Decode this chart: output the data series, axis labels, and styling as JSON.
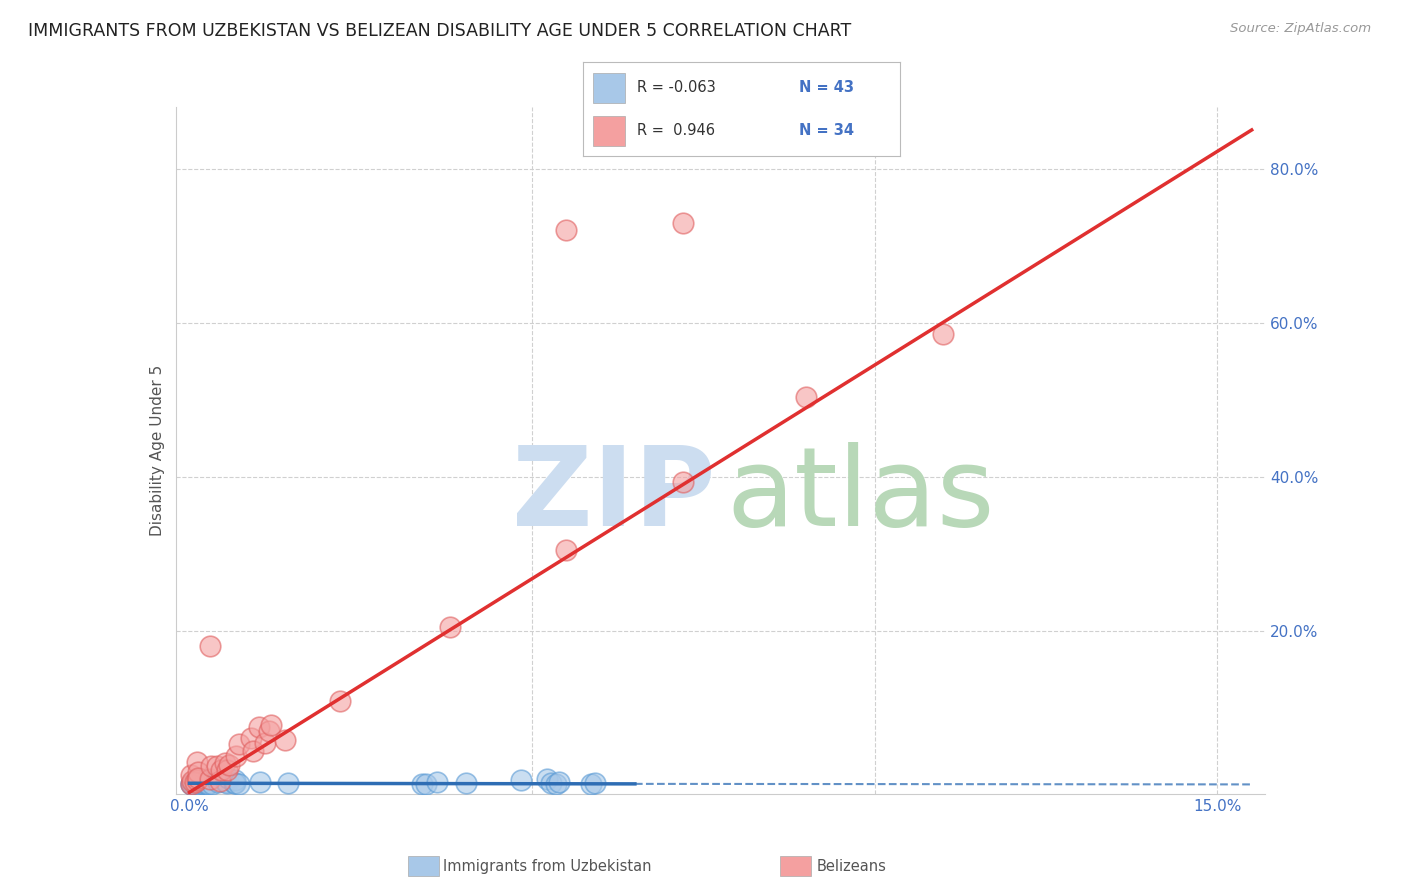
{
  "title": "IMMIGRANTS FROM UZBEKISTAN VS BELIZEAN DISABILITY AGE UNDER 5 CORRELATION CHART",
  "source": "Source: ZipAtlas.com",
  "ylabel": "Disability Age Under 5",
  "xlim_min": -0.002,
  "xlim_max": 0.157,
  "ylim_min": -0.012,
  "ylim_max": 0.88,
  "legend_r1": "R = -0.063",
  "legend_n1": "N = 43",
  "legend_r2": "R =  0.946",
  "legend_n2": "N = 34",
  "blue_color": "#a8c8e8",
  "blue_edge_color": "#5b9bd5",
  "pink_color": "#f4a0a0",
  "pink_edge_color": "#e06060",
  "blue_line_color": "#2e6db4",
  "pink_line_color": "#e03030",
  "tick_color": "#4472C4",
  "grid_color": "#d0d0d0",
  "watermark_zip_color": "#ccddf0",
  "watermark_atlas_color": "#b8d8b8",
  "ytick_positions": [
    0.2,
    0.4,
    0.6,
    0.8
  ],
  "ytick_labels": [
    "20.0%",
    "40.0%",
    "60.0%",
    "80.0%"
  ],
  "xtick_positions": [
    0.0,
    0.05,
    0.1,
    0.15
  ],
  "xtick_labels": [
    "0.0%",
    "",
    "",
    "15.0%"
  ]
}
